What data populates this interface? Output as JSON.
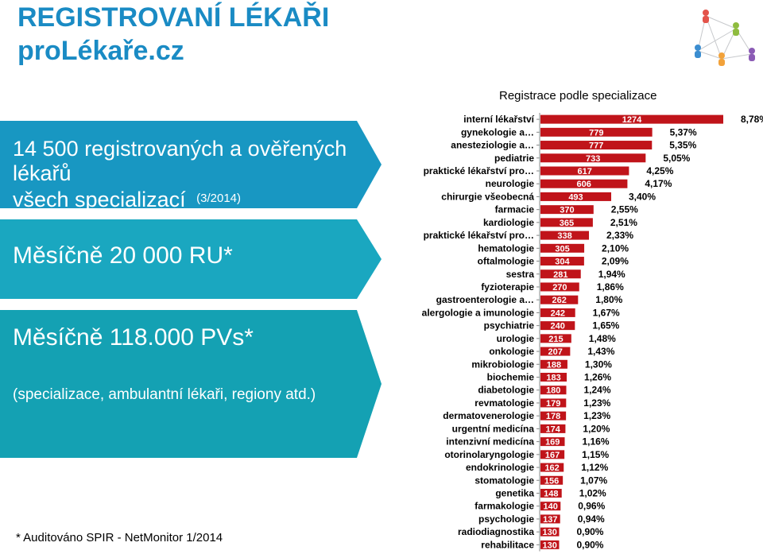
{
  "header": {
    "title_line1": "REGISTROVANÍ LÉKAŘI",
    "title_line2": "proLékaře.cz"
  },
  "panels": {
    "registered_line1": "14 500 registrovaných a ověřených",
    "registered_line2": "lékařů",
    "registered_line3": "všech specializací",
    "registered_date": "(3/2014)",
    "monthly_ru": "Měsíčně 20 000 RU*",
    "monthly_pv": "Měsíčně 118.000 PVs*",
    "note": "(specializace, ambulantní lékaři, regiony atd.)"
  },
  "footnote": "* Auditováno SPIR - NetMonitor 1/2014",
  "colors": {
    "accent": "#1a8bc4",
    "bar": "#c0141a"
  },
  "chart_data": {
    "type": "bar",
    "orientation": "horizontal",
    "title": "Registrace podle specializace",
    "categories": [
      "interní lékařství",
      "gynekologie a…",
      "anesteziologie a…",
      "pediatrie",
      "praktické lékařství pro…",
      "neurologie",
      "chirurgie všeobecná",
      "farmacie",
      "kardiologie",
      "praktické lékařství pro…",
      "hematologie",
      "oftalmologie",
      "sestra",
      "fyzioterapie",
      "gastroenterologie a…",
      "alergologie a imunologie",
      "psychiatrie",
      "urologie",
      "onkologie",
      "mikrobiologie",
      "biochemie",
      "diabetologie",
      "revmatologie",
      "dermatovenerologie",
      "urgentní medicína",
      "intenzivní medicína",
      "otorinolaryngologie",
      "endokrinologie",
      "stomatologie",
      "genetika",
      "farmakologie",
      "psychologie",
      "radiodiagnostika",
      "rehabilitace"
    ],
    "values": [
      1274,
      779,
      777,
      733,
      617,
      606,
      493,
      370,
      365,
      338,
      305,
      304,
      281,
      270,
      262,
      242,
      240,
      215,
      207,
      188,
      183,
      180,
      179,
      178,
      174,
      169,
      167,
      162,
      156,
      148,
      140,
      137,
      130,
      130
    ],
    "value_labels": [
      "1274",
      "779",
      "777",
      "733",
      "617",
      "606",
      "493",
      "370",
      "365",
      "338",
      "305",
      "304",
      "281",
      "270",
      "262",
      "242",
      "240",
      "215",
      "207",
      "188",
      "183",
      "180",
      "179",
      "178",
      "174",
      "169",
      "167",
      "162",
      "156",
      "148",
      "140",
      "137",
      "130",
      "130"
    ],
    "percent_labels": [
      "8,78%",
      "5,37%",
      "5,35%",
      "5,05%",
      "4,25%",
      "4,17%",
      "3,40%",
      "2,55%",
      "2,51%",
      "2,33%",
      "2,10%",
      "2,09%",
      "1,94%",
      "1,86%",
      "1,80%",
      "1,67%",
      "1,65%",
      "1,48%",
      "1,43%",
      "1,30%",
      "1,26%",
      "1,24%",
      "1,23%",
      "1,23%",
      "1,20%",
      "1,16%",
      "1,15%",
      "1,12%",
      "1,07%",
      "1,02%",
      "0,96%",
      "0,94%",
      "0,90%",
      "0,90%"
    ],
    "bar_color": "#c0141a",
    "grid": false,
    "legend": "none"
  }
}
